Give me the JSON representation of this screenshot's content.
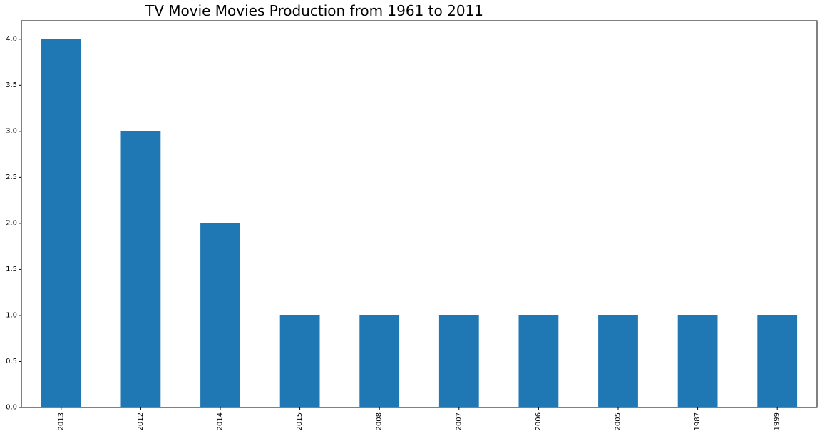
{
  "chart_data": {
    "type": "bar",
    "title": "TV Movie Movies Production from 1961 to 2011",
    "xlabel": "",
    "ylabel": "",
    "categories": [
      "2013",
      "2012",
      "2014",
      "2015",
      "2008",
      "2007",
      "2006",
      "2005",
      "1987",
      "1999"
    ],
    "values": [
      4,
      3,
      2,
      1,
      1,
      1,
      1,
      1,
      1,
      1
    ],
    "ylim": [
      0,
      4.2
    ],
    "yticks": [
      "0.0",
      "0.5",
      "1.0",
      "1.5",
      "2.0",
      "2.5",
      "3.0",
      "3.5",
      "4.0"
    ],
    "bar_color": "#1f77b4",
    "grid": false,
    "legend": "none"
  }
}
